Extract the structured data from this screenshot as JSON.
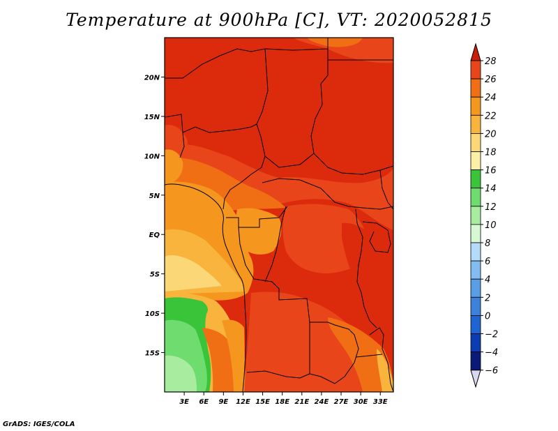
{
  "title": "Temperature at 900hPa [C], VT: 2020052815",
  "footer": "GrADS: IGES/COLA",
  "map": {
    "lon_range": [
      0,
      35
    ],
    "lat_range": [
      -20,
      25
    ],
    "lon_ticks": [
      "3E",
      "6E",
      "9E",
      "12E",
      "15E",
      "18E",
      "21E",
      "24E",
      "27E",
      "30E",
      "33E"
    ],
    "lat_ticks": [
      "20N",
      "15N",
      "10N",
      "5N",
      "EQ",
      "5S",
      "10S",
      "15S"
    ]
  },
  "colorbar": {
    "levels": [
      "28",
      "26",
      "24",
      "22",
      "20",
      "18",
      "16",
      "14",
      "12",
      "10",
      "8",
      "6",
      "4",
      "2",
      "0",
      "−2",
      "−4",
      "−6"
    ],
    "colors_top_to_bottom": [
      "#d82a0a",
      "#e8461a",
      "#f06e14",
      "#f5961e",
      "#f8b43c",
      "#fbd778",
      "#fcf0a6",
      "#3ac43a",
      "#6edc6e",
      "#a8eca0",
      "#d6f8d2",
      "#b4dcfa",
      "#82bcf0",
      "#5a9ee6",
      "#3c82dc",
      "#1e64d2",
      "#0a3cb4",
      "#0a1a78"
    ],
    "over_color": "#c81e0a",
    "under_color": "#d8d8f0"
  }
}
